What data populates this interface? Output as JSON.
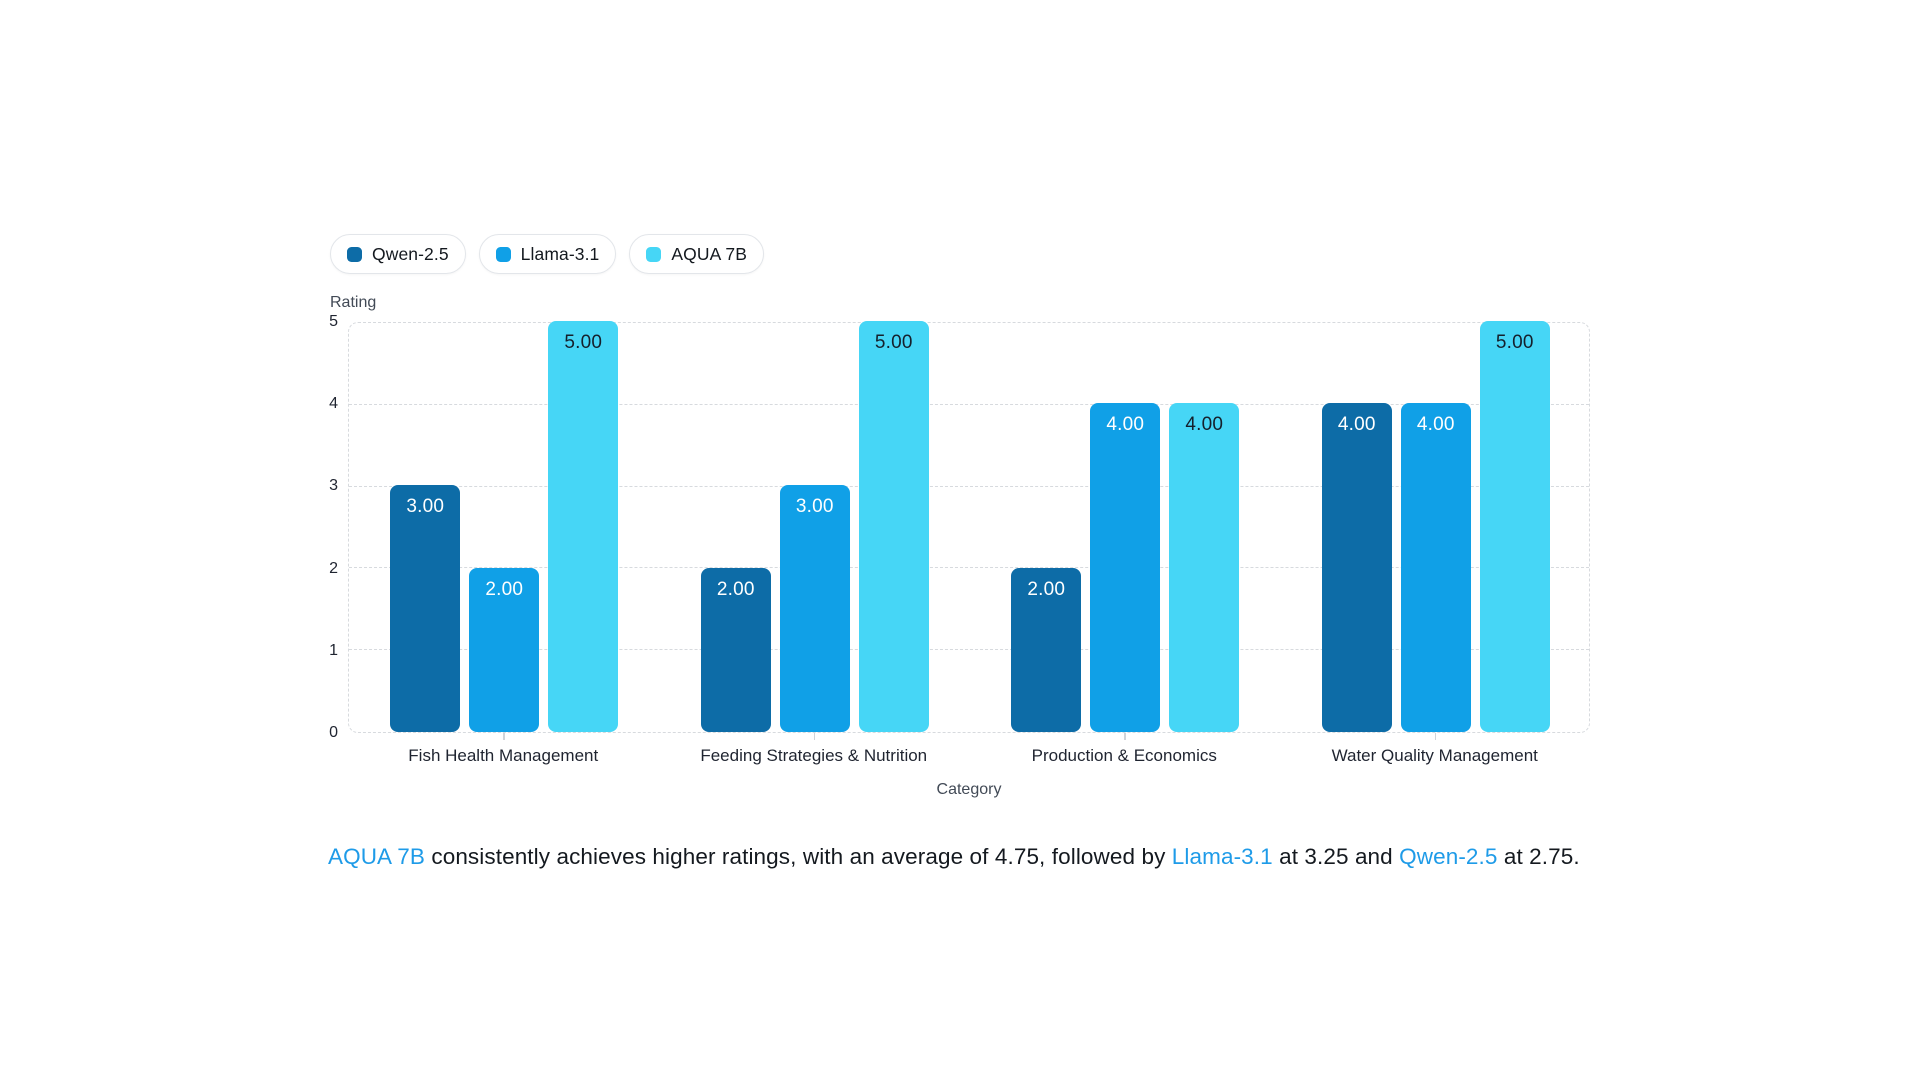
{
  "chart_data": {
    "type": "bar",
    "title": "",
    "xlabel": "Category",
    "ylabel": "Rating",
    "ylim": [
      0,
      5
    ],
    "yticks": [
      0,
      1,
      2,
      3,
      4,
      5
    ],
    "grid": "horizontal-dashed",
    "legend_position": "top-left",
    "value_decimals": 2,
    "categories": [
      "Fish Health Management",
      "Feeding Strategies & Nutrition",
      "Production & Economics",
      "Water Quality Management"
    ],
    "series": [
      {
        "name": "Qwen-2.5",
        "color": "#0d6ca7",
        "label_color": "#ffffff",
        "values": [
          3,
          2,
          2,
          4
        ]
      },
      {
        "name": "Llama-3.1",
        "color": "#10a0e7",
        "label_color": "#ffffff",
        "values": [
          2,
          3,
          4,
          4
        ]
      },
      {
        "name": "AQUA 7B",
        "color": "#46d6f6",
        "label_color": "#15202c",
        "values": [
          5,
          5,
          4,
          5
        ]
      }
    ]
  },
  "summary": {
    "highlight_color": "#1e9be8",
    "segments": [
      {
        "text": "AQUA 7B",
        "highlight": true
      },
      {
        "text": " consistently achieves higher ratings, with an average of 4.75, followed by ",
        "highlight": false
      },
      {
        "text": "Llama-3.1",
        "highlight": true
      },
      {
        "text": " at 3.25 and ",
        "highlight": false
      },
      {
        "text": "Qwen-2.5",
        "highlight": true
      },
      {
        "text": " at 2.75.",
        "highlight": false
      }
    ]
  },
  "colors": {
    "background": "#ffffff",
    "grid": "#d7dade",
    "tick_text": "#1f2430",
    "axis_title_text": "#424a56",
    "legend_border": "#e3e6ea"
  }
}
